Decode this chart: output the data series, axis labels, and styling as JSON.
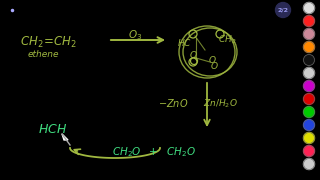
{
  "bg_color": "#000000",
  "green": "#a0b840",
  "bright_green": "#40dd80",
  "white": "#ffffff",
  "fig_width": 3.2,
  "fig_height": 1.8,
  "dpi": 100,
  "page_num": "2/2",
  "toolbar_colors": [
    "#dddddd",
    "#ff2020",
    "#cc8899",
    "#ff8800",
    "#111111",
    "#cccccc",
    "#cc00cc",
    "#dd0000",
    "#00cc00",
    "#2244dd",
    "#dddd00",
    "#ff2255",
    "#cccccc"
  ]
}
